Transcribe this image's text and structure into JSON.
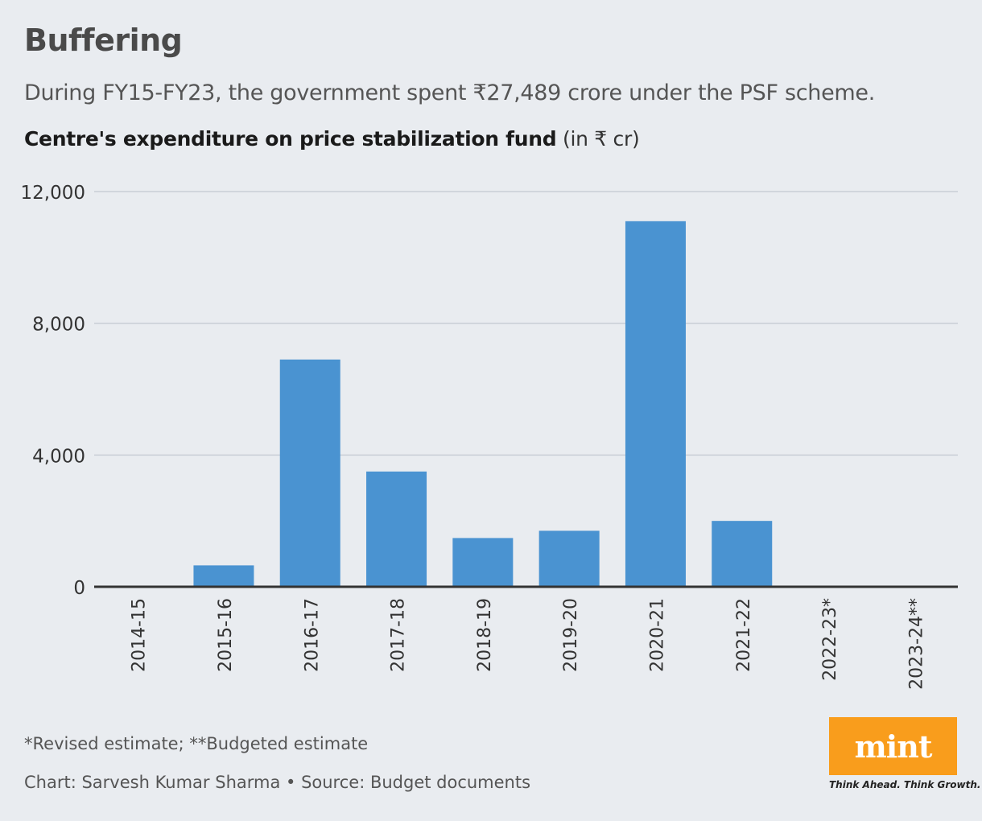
{
  "title": "Buffering",
  "subtitle": "During FY15-FY23, the government spent ₹27,489 crore under the PSF scheme.",
  "chart_heading_bold": "Centre's expenditure on price stabilization fund",
  "chart_heading_unit": "(in ₹ cr)",
  "footnote": "*Revised estimate; **Budgeted estimate",
  "credit": "Chart: Sarvesh Kumar Sharma • Source: Budget documents",
  "logo": {
    "word": "mint",
    "tagline": "Think Ahead. Think Growth."
  },
  "colors": {
    "bar": "#4a93d1",
    "grid": "#c9ced6",
    "axis": "#333333",
    "logo": "#f99d1c"
  },
  "chart_data": {
    "type": "bar",
    "title": "Centre's expenditure on price stabilization fund",
    "ylabel": "in ₹ cr",
    "categories": [
      "2014-15",
      "2015-16",
      "2016-17",
      "2017-18",
      "2018-19",
      "2019-20",
      "2020-21",
      "2021-22",
      "2022-23*",
      "2023-24**"
    ],
    "values": [
      0,
      650,
      6900,
      3500,
      1480,
      1700,
      11100,
      2000,
      0,
      0
    ],
    "yticks": [
      0,
      4000,
      8000,
      12000
    ],
    "ytick_labels": [
      "0",
      "4,000",
      "8,000",
      "12,000"
    ],
    "ylim": [
      0,
      12000
    ],
    "grid": true
  }
}
